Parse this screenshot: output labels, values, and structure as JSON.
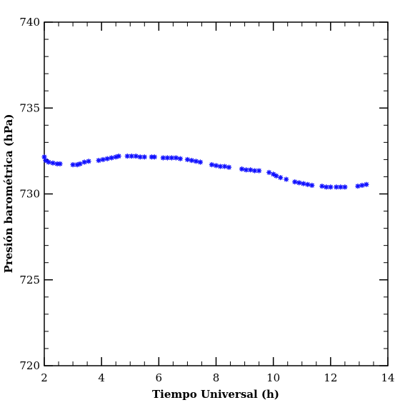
{
  "chart_data": {
    "type": "scatter",
    "title": "",
    "xlabel": "Tiempo Universal (h)",
    "ylabel": "Presión barométrica (hPa)",
    "xlim": [
      2,
      14
    ],
    "ylim": [
      720,
      740
    ],
    "x_ticks": [
      2,
      4,
      6,
      8,
      10,
      12,
      14
    ],
    "y_ticks": [
      720,
      725,
      730,
      735,
      740
    ],
    "x_tick_labels": [
      "2",
      "4",
      "6",
      "8",
      "10",
      "12",
      "14"
    ],
    "y_tick_labels": [
      "720",
      "725",
      "730",
      "735",
      "740"
    ],
    "x_minor_step": 0.5,
    "y_minor_step": 1,
    "grid": false,
    "legend": "none",
    "marker": "asterisk",
    "series": [
      {
        "color": "#1010ff",
        "points": [
          [
            2.0,
            732.15
          ],
          [
            2.05,
            731.95
          ],
          [
            2.15,
            731.85
          ],
          [
            2.3,
            731.8
          ],
          [
            2.45,
            731.75
          ],
          [
            2.55,
            731.75
          ],
          [
            3.0,
            731.7
          ],
          [
            3.15,
            731.7
          ],
          [
            3.25,
            731.75
          ],
          [
            3.4,
            731.85
          ],
          [
            3.55,
            731.9
          ],
          [
            3.9,
            731.95
          ],
          [
            4.05,
            732.0
          ],
          [
            4.2,
            732.05
          ],
          [
            4.35,
            732.1
          ],
          [
            4.5,
            732.15
          ],
          [
            4.6,
            732.2
          ],
          [
            4.9,
            732.2
          ],
          [
            5.05,
            732.2
          ],
          [
            5.2,
            732.2
          ],
          [
            5.35,
            732.15
          ],
          [
            5.5,
            732.15
          ],
          [
            5.75,
            732.15
          ],
          [
            5.85,
            732.15
          ],
          [
            6.15,
            732.1
          ],
          [
            6.3,
            732.1
          ],
          [
            6.45,
            732.1
          ],
          [
            6.6,
            732.1
          ],
          [
            6.75,
            732.05
          ],
          [
            7.0,
            732.0
          ],
          [
            7.15,
            731.95
          ],
          [
            7.3,
            731.9
          ],
          [
            7.45,
            731.85
          ],
          [
            7.85,
            731.7
          ],
          [
            8.0,
            731.65
          ],
          [
            8.15,
            731.6
          ],
          [
            8.3,
            731.6
          ],
          [
            8.45,
            731.55
          ],
          [
            8.9,
            731.45
          ],
          [
            9.05,
            731.4
          ],
          [
            9.2,
            731.4
          ],
          [
            9.35,
            731.35
          ],
          [
            9.5,
            731.35
          ],
          [
            9.85,
            731.25
          ],
          [
            10.0,
            731.15
          ],
          [
            10.1,
            731.05
          ],
          [
            10.25,
            730.95
          ],
          [
            10.45,
            730.85
          ],
          [
            10.75,
            730.7
          ],
          [
            10.9,
            730.65
          ],
          [
            11.05,
            730.6
          ],
          [
            11.2,
            730.55
          ],
          [
            11.35,
            730.5
          ],
          [
            11.7,
            730.45
          ],
          [
            11.85,
            730.4
          ],
          [
            12.0,
            730.4
          ],
          [
            12.2,
            730.4
          ],
          [
            12.35,
            730.4
          ],
          [
            12.5,
            730.4
          ],
          [
            12.95,
            730.45
          ],
          [
            13.1,
            730.5
          ],
          [
            13.25,
            730.55
          ]
        ]
      }
    ]
  }
}
